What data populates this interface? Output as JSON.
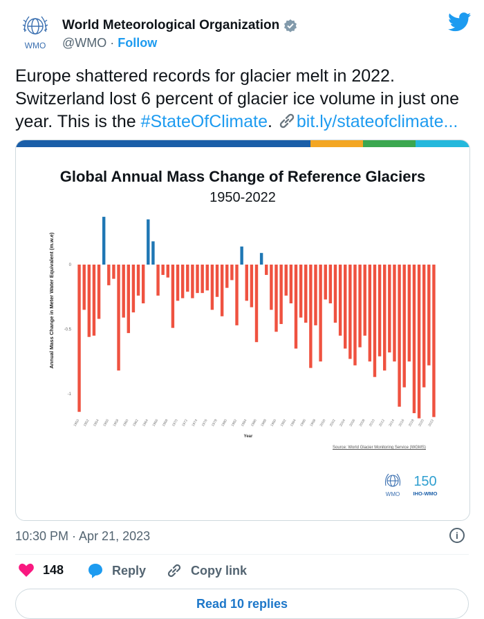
{
  "author": {
    "name": "World Meteorological Organization",
    "handle": "@WMO",
    "separator": " · ",
    "follow_label": "Follow",
    "logo_text": "WMO"
  },
  "tweet": {
    "line1": "Europe shattered records for glacier melt in 2022.",
    "line2": "Switzerland lost 6 percent of glacier ice volume in just one",
    "line3_pre": "year. This is the ",
    "hashtag": "#StateOfClimate",
    "line3_mid": ". ",
    "link": "bit.ly/stateofclimate..."
  },
  "card": {
    "title": "Global Annual Mass Change of Reference Glaciers",
    "subtitle": "1950-2022",
    "source": "Source: World Glacier Monitoring Service (WGMS)",
    "wmo_label": "WMO",
    "iho_label": "IHO-WMO",
    "iho_num": "150",
    "stripe_colors": [
      "#1a5ea8",
      "#f3a623",
      "#3ba74f",
      "#24b8dc"
    ]
  },
  "chart_data": {
    "type": "bar",
    "title": "Global Annual Mass Change of Reference Glaciers",
    "subtitle": "1950-2022",
    "xlabel": "Year",
    "ylabel": "Annual Mass Change in Meter Water Equivalent (m.w.e)",
    "ylim": [
      -1.2,
      0.4
    ],
    "yticks": [
      0,
      -0.5,
      -1
    ],
    "ytick_labels": [
      "0",
      "-0.5",
      "-1"
    ],
    "categories": [
      "1950",
      "1951",
      "1952",
      "1953",
      "1954",
      "1955",
      "1956",
      "1957",
      "1958",
      "1959",
      "1960",
      "1961",
      "1962",
      "1963",
      "1964",
      "1965",
      "1966",
      "1967",
      "1968",
      "1969",
      "1970",
      "1971",
      "1972",
      "1973",
      "1974",
      "1975",
      "1976",
      "1977",
      "1978",
      "1979",
      "1980",
      "1981",
      "1982",
      "1983",
      "1984",
      "1985",
      "1986",
      "1987",
      "1988",
      "1989",
      "1990",
      "1991",
      "1992",
      "1993",
      "1994",
      "1995",
      "1996",
      "1997",
      "1998",
      "1999",
      "2000",
      "2001",
      "2002",
      "2003",
      "2004",
      "2005",
      "2006",
      "2007",
      "2008",
      "2009",
      "2010",
      "2011",
      "2012",
      "2013",
      "2014",
      "2015",
      "2016",
      "2017",
      "2018",
      "2019",
      "2020",
      "2021",
      "2022"
    ],
    "xtick_labels": [
      "1950",
      "1952",
      "1954",
      "1956",
      "1958",
      "1960",
      "1962",
      "1964",
      "1966",
      "1968",
      "1970",
      "1972",
      "1974",
      "1976",
      "1978",
      "1980",
      "1982",
      "1984",
      "1986",
      "1988",
      "1990",
      "1992",
      "1994",
      "1996",
      "1998",
      "2000",
      "2002",
      "2004",
      "2006",
      "2008",
      "2010",
      "2012",
      "2014",
      "2016",
      "2018",
      "2020",
      "2022"
    ],
    "values": [
      -1.14,
      -0.35,
      -0.56,
      -0.55,
      -0.42,
      0.37,
      -0.16,
      -0.11,
      -0.82,
      -0.41,
      -0.53,
      -0.37,
      -0.24,
      -0.3,
      0.35,
      0.18,
      -0.24,
      -0.08,
      -0.1,
      -0.49,
      -0.28,
      -0.26,
      -0.21,
      -0.26,
      -0.22,
      -0.22,
      -0.2,
      -0.35,
      -0.25,
      -0.4,
      -0.18,
      -0.12,
      -0.47,
      0.14,
      -0.28,
      -0.33,
      -0.6,
      0.09,
      -0.08,
      -0.35,
      -0.52,
      -0.46,
      -0.24,
      -0.3,
      -0.65,
      -0.41,
      -0.45,
      -0.8,
      -0.47,
      -0.75,
      -0.27,
      -0.3,
      -0.45,
      -0.55,
      -0.65,
      -0.73,
      -0.78,
      -0.64,
      -0.55,
      -0.75,
      -0.87,
      -0.71,
      -0.82,
      -0.68,
      -0.75,
      -1.1,
      -0.95,
      -0.75,
      -1.15,
      -1.19,
      -0.95,
      -0.78,
      -1.18
    ],
    "positive_color": "#1f77b4",
    "negative_color": "#ef5240"
  },
  "meta": {
    "timestamp": "10:30 PM · Apr 21, 2023",
    "info_glyph": "i"
  },
  "actions": {
    "likes": "148",
    "reply_label": "Reply",
    "copy_label": "Copy link",
    "read_replies": "Read 10 replies"
  },
  "colors": {
    "link": "#1d9bf0",
    "like": "#f91880"
  }
}
